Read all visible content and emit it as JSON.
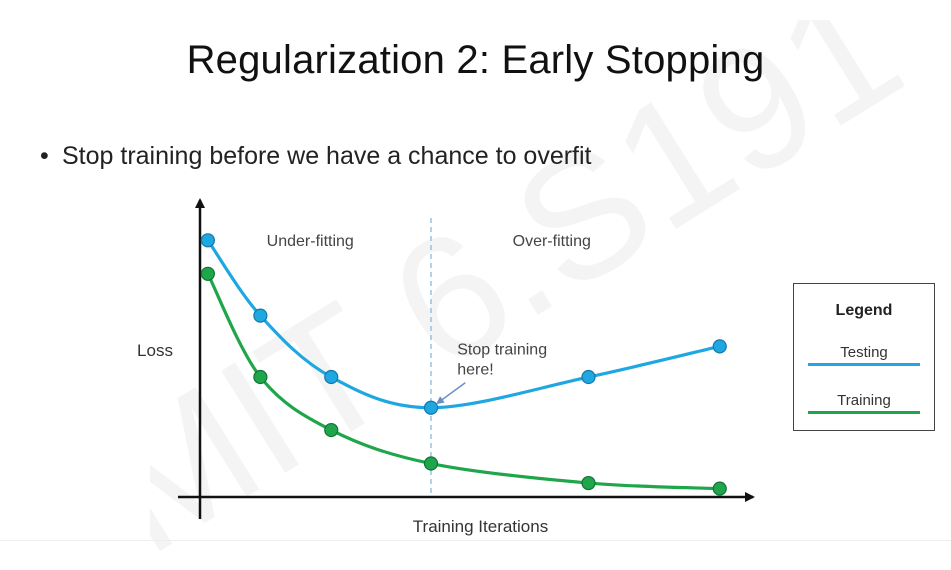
{
  "slide": {
    "title": "Regularization 2: Early Stopping",
    "bullet": "Stop training before we have a chance to overfit",
    "watermark": "MIT 6.S191"
  },
  "chart_data": {
    "type": "line",
    "title": "",
    "xlabel": "Training Iterations",
    "ylabel": "Loss",
    "xlim": [
      0,
      10
    ],
    "ylim": [
      0,
      10
    ],
    "grid": false,
    "legend_position": "right",
    "legend": {
      "title": "Legend",
      "entries": [
        "Testing",
        "Training"
      ]
    },
    "series": [
      {
        "name": "Testing",
        "color": "#1ea7e1",
        "x": [
          0.15,
          1.15,
          2.5,
          4.4,
          7.4,
          9.9
        ],
        "y": [
          9.2,
          6.5,
          4.3,
          3.2,
          4.3,
          5.4
        ]
      },
      {
        "name": "Training",
        "color": "#1fa64a",
        "x": [
          0.15,
          1.15,
          2.5,
          4.4,
          7.4,
          9.9
        ],
        "y": [
          8.0,
          4.3,
          2.4,
          1.2,
          0.5,
          0.3
        ]
      }
    ],
    "regions": [
      {
        "label": "Under-fitting",
        "x": 2.1,
        "y": 9.0
      },
      {
        "label": "Over-fitting",
        "x": 6.7,
        "y": 9.0
      }
    ],
    "stopping_line_x": 4.4,
    "annotation": {
      "lines": [
        "Stop training",
        "here!"
      ],
      "x": 4.9,
      "y": 5.1,
      "arrow_to": {
        "x": 4.45,
        "y": 3.3
      }
    }
  }
}
